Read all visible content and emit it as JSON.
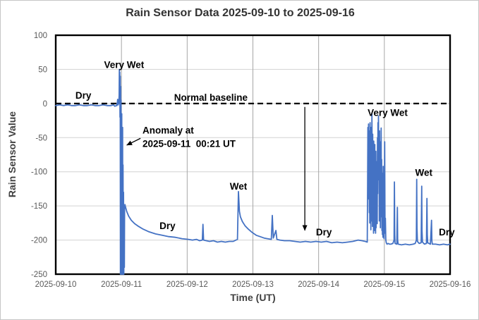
{
  "figure": {
    "title": "Rain Sensor Data 2025-09-10 to 2025-09-16",
    "x_axis_label": "Time (UT)",
    "y_axis_label": "Rain Sensor Value"
  },
  "colors": {
    "series": "#4472C4",
    "baseline": "#000000",
    "grid_horizontal": "#d2d2d2",
    "grid_vertical": "#a6a6a6",
    "axis_border": "#000000",
    "tick_label": "#595959",
    "annotation": "#000000"
  },
  "chart_data": {
    "type": "line",
    "title": "Rain Sensor Data 2025-09-10 to 2025-09-16",
    "xlabel": "Time (UT)",
    "ylabel": "Rain Sensor Value",
    "x_unit": "days since 2025-09-10 00:00 UT",
    "xlim": [
      0,
      6
    ],
    "ylim": [
      -250,
      100
    ],
    "x_tick_labels": [
      "2025-09-10",
      "2025-09-11",
      "2025-09-12",
      "2025-09-13",
      "2025-09-14",
      "2025-09-15",
      "2025-09-16"
    ],
    "y_ticks": [
      100,
      50,
      0,
      -50,
      -100,
      -150,
      -200,
      -250
    ],
    "grid": true,
    "legend": null,
    "baseline": {
      "label": "Normal baseline",
      "value": 0,
      "style": "dashed"
    },
    "series": [
      {
        "name": "rain sensor value",
        "points": [
          [
            0.0,
            -3
          ],
          [
            0.06,
            -2
          ],
          [
            0.12,
            -3
          ],
          [
            0.18,
            -2
          ],
          [
            0.24,
            -3
          ],
          [
            0.3,
            -3
          ],
          [
            0.36,
            -2
          ],
          [
            0.42,
            -3
          ],
          [
            0.48,
            -3
          ],
          [
            0.54,
            -2
          ],
          [
            0.6,
            -3
          ],
          [
            0.66,
            -3
          ],
          [
            0.72,
            -2
          ],
          [
            0.78,
            -3
          ],
          [
            0.84,
            -3
          ],
          [
            0.88,
            -2
          ],
          [
            0.9,
            -4
          ],
          [
            0.92,
            -3
          ],
          [
            0.93,
            -3
          ],
          [
            0.938,
            2
          ],
          [
            0.942,
            6
          ],
          [
            0.946,
            2
          ],
          [
            0.95,
            -2
          ],
          [
            0.955,
            3
          ],
          [
            0.96,
            0
          ],
          [
            0.965,
            12
          ],
          [
            0.968,
            50
          ],
          [
            0.972,
            30
          ],
          [
            0.975,
            46
          ],
          [
            0.978,
            -20
          ],
          [
            0.981,
            40
          ],
          [
            0.984,
            -250
          ],
          [
            0.987,
            25
          ],
          [
            0.99,
            -250
          ],
          [
            0.993,
            5
          ],
          [
            0.996,
            -250
          ],
          [
            0.999,
            -40
          ],
          [
            1.002,
            -250
          ],
          [
            1.005,
            -15
          ],
          [
            1.008,
            -250
          ],
          [
            1.011,
            -60
          ],
          [
            1.014,
            -250
          ],
          [
            1.017,
            -35
          ],
          [
            1.02,
            -250
          ],
          [
            1.024,
            -90
          ],
          [
            1.028,
            -250
          ],
          [
            1.032,
            -130
          ],
          [
            1.036,
            -250
          ],
          [
            1.04,
            -170
          ],
          [
            1.044,
            -240
          ],
          [
            1.048,
            -155
          ],
          [
            1.053,
            -148
          ],
          [
            1.06,
            -151
          ],
          [
            1.08,
            -158
          ],
          [
            1.11,
            -165
          ],
          [
            1.15,
            -171
          ],
          [
            1.2,
            -176
          ],
          [
            1.26,
            -180
          ],
          [
            1.33,
            -184
          ],
          [
            1.42,
            -188
          ],
          [
            1.52,
            -191
          ],
          [
            1.62,
            -193
          ],
          [
            1.72,
            -195
          ],
          [
            1.82,
            -196
          ],
          [
            1.92,
            -198
          ],
          [
            2.02,
            -199
          ],
          [
            2.08,
            -200
          ],
          [
            2.14,
            -199
          ],
          [
            2.19,
            -201
          ],
          [
            2.23,
            -200
          ],
          [
            2.24,
            -177
          ],
          [
            2.25,
            -200
          ],
          [
            2.29,
            -201
          ],
          [
            2.34,
            -202
          ],
          [
            2.4,
            -201
          ],
          [
            2.46,
            -203
          ],
          [
            2.52,
            -202
          ],
          [
            2.58,
            -203
          ],
          [
            2.64,
            -202
          ],
          [
            2.7,
            -202
          ],
          [
            2.765,
            -199
          ],
          [
            2.78,
            -129
          ],
          [
            2.795,
            -158
          ],
          [
            2.81,
            -166
          ],
          [
            2.84,
            -173
          ],
          [
            2.88,
            -179
          ],
          [
            2.93,
            -184
          ],
          [
            2.99,
            -189
          ],
          [
            3.05,
            -193
          ],
          [
            3.11,
            -195
          ],
          [
            3.17,
            -197
          ],
          [
            3.22,
            -198
          ],
          [
            3.28,
            -199
          ],
          [
            3.295,
            -164
          ],
          [
            3.31,
            -197
          ],
          [
            3.35,
            -186
          ],
          [
            3.365,
            -199
          ],
          [
            3.41,
            -200
          ],
          [
            3.48,
            -201
          ],
          [
            3.56,
            -201
          ],
          [
            3.64,
            -202
          ],
          [
            3.72,
            -203
          ],
          [
            3.8,
            -202
          ],
          [
            3.88,
            -203
          ],
          [
            3.96,
            -202
          ],
          [
            4.04,
            -203
          ],
          [
            4.12,
            -202
          ],
          [
            4.2,
            -204
          ],
          [
            4.28,
            -203
          ],
          [
            4.36,
            -204
          ],
          [
            4.44,
            -203
          ],
          [
            4.52,
            -202
          ],
          [
            4.6,
            -200
          ],
          [
            4.66,
            -201
          ],
          [
            4.71,
            -202
          ],
          [
            4.74,
            -203
          ],
          [
            4.745,
            -120
          ],
          [
            4.75,
            -35
          ],
          [
            4.755,
            -95
          ],
          [
            4.759,
            -30
          ],
          [
            4.763,
            -140
          ],
          [
            4.767,
            -50
          ],
          [
            4.771,
            -160
          ],
          [
            4.775,
            -40
          ],
          [
            4.779,
            -175
          ],
          [
            4.783,
            -28
          ],
          [
            4.787,
            -150
          ],
          [
            4.791,
            -62
          ],
          [
            4.795,
            -185
          ],
          [
            4.799,
            -35
          ],
          [
            4.803,
            -130
          ],
          [
            4.807,
            -172
          ],
          [
            4.811,
            -15
          ],
          [
            4.815,
            -100
          ],
          [
            4.819,
            -180
          ],
          [
            4.823,
            -45
          ],
          [
            4.827,
            -160
          ],
          [
            4.831,
            -82
          ],
          [
            4.835,
            -190
          ],
          [
            4.839,
            -55
          ],
          [
            4.843,
            -170
          ],
          [
            4.847,
            -92
          ],
          [
            4.851,
            -186
          ],
          [
            4.855,
            -60
          ],
          [
            4.859,
            -176
          ],
          [
            4.863,
            -95
          ],
          [
            4.867,
            -190
          ],
          [
            4.871,
            -70
          ],
          [
            4.875,
            -182
          ],
          [
            4.879,
            -102
          ],
          [
            4.883,
            -165
          ],
          [
            4.887,
            -85
          ],
          [
            4.891,
            -176
          ],
          [
            4.895,
            -50
          ],
          [
            4.899,
            -132
          ],
          [
            4.903,
            -28
          ],
          [
            4.907,
            -96
          ],
          [
            4.911,
            -18
          ],
          [
            4.915,
            -112
          ],
          [
            4.919,
            -62
          ],
          [
            4.923,
            -172
          ],
          [
            4.927,
            -40
          ],
          [
            4.931,
            -152
          ],
          [
            4.935,
            -76
          ],
          [
            4.939,
            -182
          ],
          [
            4.943,
            -56
          ],
          [
            4.947,
            -166
          ],
          [
            4.951,
            -36
          ],
          [
            4.955,
            -146
          ],
          [
            4.959,
            -82
          ],
          [
            4.963,
            -186
          ],
          [
            4.967,
            -102
          ],
          [
            4.971,
            -192
          ],
          [
            4.975,
            -122
          ],
          [
            4.979,
            -196
          ],
          [
            4.983,
            -92
          ],
          [
            4.987,
            -186
          ],
          [
            4.991,
            -132
          ],
          [
            4.995,
            -198
          ],
          [
            5.0,
            -152
          ],
          [
            5.005,
            -56
          ],
          [
            5.01,
            -190
          ],
          [
            5.016,
            -168
          ],
          [
            5.022,
            -200
          ],
          [
            5.03,
            -204
          ],
          [
            5.04,
            -206
          ],
          [
            5.06,
            -205
          ],
          [
            5.08,
            -206
          ],
          [
            5.1,
            -206
          ],
          [
            5.13,
            -205
          ],
          [
            5.148,
            -200
          ],
          [
            5.153,
            -115
          ],
          [
            5.158,
            -192
          ],
          [
            5.163,
            -205
          ],
          [
            5.19,
            -206
          ],
          [
            5.198,
            -152
          ],
          [
            5.203,
            -200
          ],
          [
            5.21,
            -206
          ],
          [
            5.26,
            -207
          ],
          [
            5.32,
            -206
          ],
          [
            5.38,
            -207
          ],
          [
            5.44,
            -206
          ],
          [
            5.47,
            -205
          ],
          [
            5.487,
            -200
          ],
          [
            5.492,
            -111
          ],
          [
            5.497,
            -182
          ],
          [
            5.503,
            -202
          ],
          [
            5.53,
            -205
          ],
          [
            5.56,
            -204
          ],
          [
            5.568,
            -121
          ],
          [
            5.573,
            -186
          ],
          [
            5.58,
            -203
          ],
          [
            5.61,
            -206
          ],
          [
            5.64,
            -205
          ],
          [
            5.648,
            -139
          ],
          [
            5.653,
            -192
          ],
          [
            5.66,
            -204
          ],
          [
            5.7,
            -206
          ],
          [
            5.718,
            -171
          ],
          [
            5.723,
            -201
          ],
          [
            5.73,
            -206
          ],
          [
            5.78,
            -206
          ],
          [
            5.84,
            -207
          ],
          [
            5.9,
            -206
          ],
          [
            5.96,
            -207
          ],
          [
            6.0,
            -206
          ]
        ]
      }
    ],
    "annotations": [
      {
        "lines": [
          "Dry"
        ],
        "x": 0.42,
        "y": 7,
        "anchor": "middle"
      },
      {
        "lines": [
          "Very Wet"
        ],
        "x": 1.04,
        "y": 52,
        "anchor": "middle"
      },
      {
        "lines": [
          "Normal baseline"
        ],
        "x": 2.36,
        "y": 4,
        "anchor": "middle"
      },
      {
        "lines": [
          "Anomaly at",
          "2025-09-11  00:21 UT"
        ],
        "x": 1.32,
        "y": -44,
        "anchor": "start"
      },
      {
        "lines": [
          "Dry"
        ],
        "x": 1.7,
        "y": -184,
        "anchor": "middle"
      },
      {
        "lines": [
          "Wet"
        ],
        "x": 2.78,
        "y": -126,
        "anchor": "middle"
      },
      {
        "lines": [
          "Dry"
        ],
        "x": 4.08,
        "y": -193,
        "anchor": "middle"
      },
      {
        "lines": [
          "Very Wet"
        ],
        "x": 5.05,
        "y": -18,
        "anchor": "middle"
      },
      {
        "lines": [
          "Wet"
        ],
        "x": 5.6,
        "y": -106,
        "anchor": "middle"
      },
      {
        "lines": [
          "Dry"
        ],
        "x": 5.95,
        "y": -193,
        "anchor": "middle"
      }
    ],
    "arrows": [
      {
        "x1": 1.29,
        "y1": -51,
        "x2": 1.08,
        "y2": -61
      },
      {
        "x1": 3.79,
        "y1": -5,
        "x2": 3.79,
        "y2": -186
      }
    ]
  }
}
